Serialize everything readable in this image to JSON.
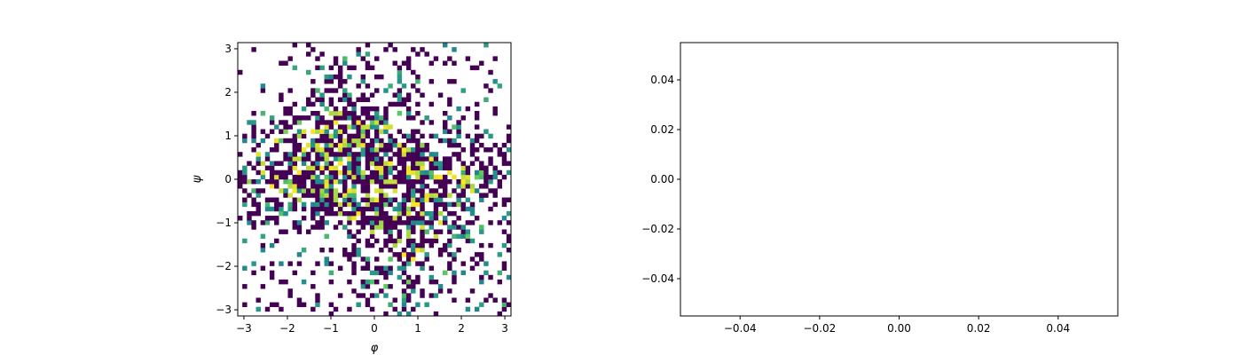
{
  "chart_data": [
    {
      "type": "heatmap",
      "title": "",
      "xlabel": "φ",
      "ylabel": "ψ",
      "xlim": [
        -3.14159,
        3.14159
      ],
      "ylim": [
        -3.14159,
        3.14159
      ],
      "xticks": [
        -3,
        -2,
        -1,
        0,
        1,
        2,
        3
      ],
      "xtick_labels": [
        "−3",
        "−2",
        "−1",
        "0",
        "1",
        "2",
        "3"
      ],
      "yticks": [
        -3,
        -2,
        -1,
        0,
        1,
        2,
        3
      ],
      "ytick_labels": [
        "−3",
        "−2",
        "−1",
        "0",
        "1",
        "2",
        "3"
      ],
      "bins": [
        60,
        60
      ],
      "colormap": "viridis",
      "empty_bins": "white",
      "grid": false,
      "density_centers": [
        {
          "phi": 0.0,
          "psi": 0.1,
          "weight": 1.0
        },
        {
          "phi": 0.8,
          "psi": -0.3,
          "weight": 0.8
        },
        {
          "phi": -1.6,
          "psi": 0.2,
          "weight": 0.7
        },
        {
          "phi": -0.8,
          "psi": 1.1,
          "weight": 0.55
        },
        {
          "phi": 0.8,
          "psi": -1.4,
          "weight": 0.5
        },
        {
          "phi": 2.3,
          "psi": 0.1,
          "weight": 0.55
        },
        {
          "phi": -2.7,
          "psi": 0.3,
          "weight": 0.45
        },
        {
          "phi": 0.3,
          "psi": -2.6,
          "weight": 0.35
        },
        {
          "phi": -0.6,
          "psi": 2.6,
          "weight": 0.35
        },
        {
          "phi": 1.5,
          "psi": 2.7,
          "weight": 0.25
        },
        {
          "phi": 2.6,
          "psi": -2.3,
          "weight": 0.3
        },
        {
          "phi": -2.3,
          "psi": -2.7,
          "weight": 0.25
        }
      ]
    },
    {
      "type": "line",
      "title": "",
      "xlabel": "",
      "ylabel": "",
      "series": [],
      "xlim": [
        -0.055,
        0.055
      ],
      "ylim": [
        -0.055,
        0.055
      ],
      "xticks": [
        -0.04,
        -0.02,
        0.0,
        0.02,
        0.04
      ],
      "xtick_labels": [
        "−0.04",
        "−0.02",
        "0.00",
        "0.02",
        "0.04"
      ],
      "yticks": [
        -0.04,
        -0.02,
        0.0,
        0.02,
        0.04
      ],
      "ytick_labels": [
        "−0.04",
        "−0.02",
        "0.00",
        "0.02",
        "0.04"
      ],
      "grid": false
    }
  ]
}
